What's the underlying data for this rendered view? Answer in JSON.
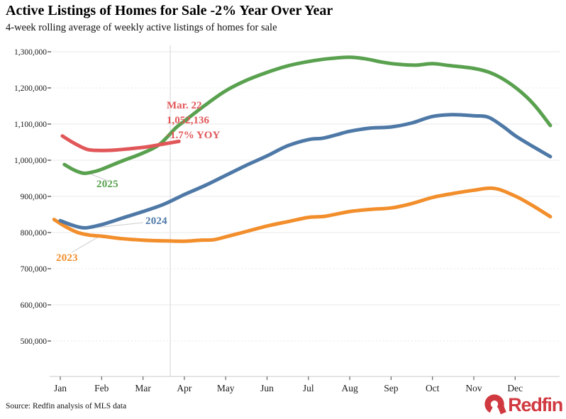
{
  "header": {
    "title": "Active Listings of Homes for Sale -2% Year Over Year",
    "subtitle": "4-week rolling average of weekly active listings of homes for sale"
  },
  "footer": {
    "source": "Source: Redfin analysis of MLS data",
    "logo_text": "Redfin",
    "logo_color": "#d0393f"
  },
  "chart_data": {
    "type": "line",
    "title": "Active Listings of Homes for Sale -2% Year Over Year",
    "subtitle": "4-week rolling average of weekly active listings of homes for sale",
    "x_axis": {
      "tick_labels": [
        "Jan",
        "Feb",
        "Mar",
        "Apr",
        "May",
        "Jun",
        "Jul",
        "Aug",
        "Sep",
        "Oct",
        "Nov",
        "Dec"
      ],
      "unit": "month index, 0 = Jan tick"
    },
    "y_axis": {
      "ticks": [
        500000,
        600000,
        700000,
        800000,
        900000,
        1000000,
        1100000,
        1200000,
        1300000
      ],
      "dotted_gridlines": [
        500000,
        700000,
        1200000
      ],
      "ylim": [
        400000,
        1320000
      ]
    },
    "grid": "horizontal",
    "legend_position": "inline-labels",
    "reference_line_x_month": 2.66,
    "annotation": {
      "lines": [
        "Mar. 22",
        "1,052,136",
        "-1.7% YOY"
      ],
      "value": 1052136,
      "color": "#e15759"
    },
    "series": [
      {
        "name": "2023",
        "label": "2023",
        "color": "#f28e2b",
        "points": [
          [
            -0.15,
            836000
          ],
          [
            0.1,
            818000
          ],
          [
            0.4,
            801000
          ],
          [
            0.7,
            793000
          ],
          [
            1.0,
            790000
          ],
          [
            1.5,
            783000
          ],
          [
            2.0,
            779000
          ],
          [
            2.5,
            777000
          ],
          [
            3.0,
            776000
          ],
          [
            3.4,
            779000
          ],
          [
            3.7,
            780000
          ],
          [
            4.0,
            788000
          ],
          [
            4.5,
            803000
          ],
          [
            5.0,
            818000
          ],
          [
            5.5,
            830000
          ],
          [
            6.0,
            842000
          ],
          [
            6.4,
            845000
          ],
          [
            7.0,
            858000
          ],
          [
            7.5,
            864000
          ],
          [
            8.0,
            868000
          ],
          [
            8.5,
            880000
          ],
          [
            9.0,
            897000
          ],
          [
            9.5,
            908000
          ],
          [
            10.0,
            917000
          ],
          [
            10.5,
            922000
          ],
          [
            11.0,
            901000
          ],
          [
            11.4,
            876000
          ],
          [
            11.85,
            844000
          ]
        ]
      },
      {
        "name": "2024",
        "label": "2024",
        "color": "#4e79a7",
        "points": [
          [
            0.0,
            833000
          ],
          [
            0.3,
            820000
          ],
          [
            0.6,
            813000
          ],
          [
            1.0,
            822000
          ],
          [
            1.5,
            840000
          ],
          [
            2.0,
            858000
          ],
          [
            2.5,
            878000
          ],
          [
            3.0,
            905000
          ],
          [
            3.5,
            930000
          ],
          [
            4.0,
            958000
          ],
          [
            4.5,
            986000
          ],
          [
            5.0,
            1012000
          ],
          [
            5.5,
            1040000
          ],
          [
            6.0,
            1057000
          ],
          [
            6.35,
            1061000
          ],
          [
            6.7,
            1071000
          ],
          [
            7.0,
            1080000
          ],
          [
            7.5,
            1089000
          ],
          [
            8.0,
            1092000
          ],
          [
            8.5,
            1103000
          ],
          [
            9.0,
            1121000
          ],
          [
            9.5,
            1126000
          ],
          [
            10.0,
            1123000
          ],
          [
            10.35,
            1119000
          ],
          [
            10.7,
            1094000
          ],
          [
            11.0,
            1068000
          ],
          [
            11.4,
            1040000
          ],
          [
            11.85,
            1010000
          ]
        ]
      },
      {
        "name": "2025",
        "label": "2025",
        "color": "#59a14f",
        "points": [
          [
            0.1,
            988000
          ],
          [
            0.35,
            972000
          ],
          [
            0.57,
            964000
          ],
          [
            0.8,
            968000
          ],
          [
            1.0,
            975000
          ],
          [
            1.5,
            998000
          ],
          [
            2.0,
            1020000
          ],
          [
            2.4,
            1044000
          ],
          [
            2.8,
            1090000
          ],
          [
            3.0,
            1108000
          ],
          [
            3.5,
            1152000
          ],
          [
            4.0,
            1192000
          ],
          [
            4.5,
            1221000
          ],
          [
            5.0,
            1243000
          ],
          [
            5.5,
            1261000
          ],
          [
            6.0,
            1273000
          ],
          [
            6.5,
            1281000
          ],
          [
            7.0,
            1285000
          ],
          [
            7.4,
            1280000
          ],
          [
            7.8,
            1271000
          ],
          [
            8.2,
            1265000
          ],
          [
            8.6,
            1263000
          ],
          [
            9.0,
            1267000
          ],
          [
            9.4,
            1262000
          ],
          [
            10.0,
            1254000
          ],
          [
            10.4,
            1242000
          ],
          [
            10.8,
            1218000
          ],
          [
            11.2,
            1183000
          ],
          [
            11.5,
            1148000
          ],
          [
            11.85,
            1096000
          ]
        ]
      },
      {
        "name": "latest-partial",
        "label": "",
        "color": "#e15759",
        "points": [
          [
            0.05,
            1067000
          ],
          [
            0.35,
            1046000
          ],
          [
            0.65,
            1030000
          ],
          [
            0.95,
            1027000
          ],
          [
            1.3,
            1028000
          ],
          [
            1.7,
            1032000
          ],
          [
            2.1,
            1037000
          ],
          [
            2.5,
            1045000
          ],
          [
            2.87,
            1052136
          ]
        ]
      }
    ]
  },
  "layout_colors": {
    "gridline": "#e9e9e9",
    "axis": "#c9c9c9",
    "tick": "#666666",
    "text": "#1a1a1a",
    "leader": "#cccccc",
    "reference_line": "#dddddd"
  }
}
